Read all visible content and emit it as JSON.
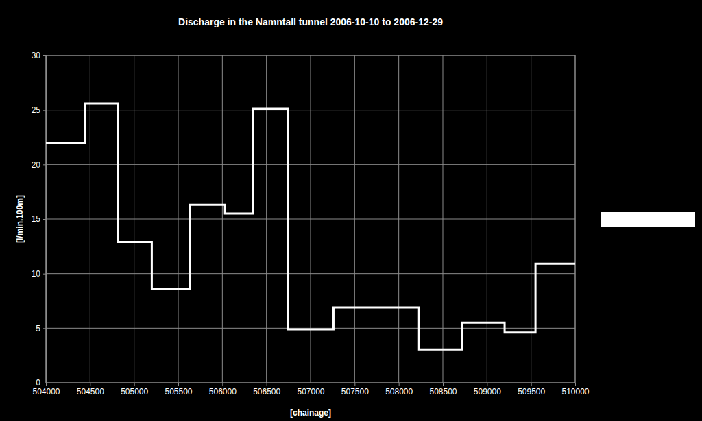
{
  "chart_data": {
    "type": "line",
    "title": "Discharge in the Namntall tunnel 2006-10-10 to 2006-12-29",
    "x_label": "[chainage]",
    "y_label": "[l/min.100m]",
    "x": [
      504000,
      504440,
      504820,
      505200,
      505630,
      506030,
      506350,
      506740,
      507260,
      508230,
      508720,
      509200,
      509550,
      510000
    ],
    "values": [
      22,
      25.6,
      12.9,
      8.6,
      16.3,
      15.5,
      25.1,
      4.9,
      6.9,
      3.0,
      5.5,
      4.6,
      10.9,
      10.9
    ],
    "color": "#ffffff",
    "line_style": "step",
    "xlim": [
      504000,
      510000
    ],
    "xticks": [
      504000,
      504500,
      505000,
      505500,
      506000,
      506500,
      507000,
      507500,
      508000,
      508500,
      509000,
      509500,
      510000
    ],
    "ylim": [
      0,
      30
    ],
    "yticks": [
      0,
      5,
      10,
      15,
      20,
      25,
      30
    ],
    "grid": true
  }
}
